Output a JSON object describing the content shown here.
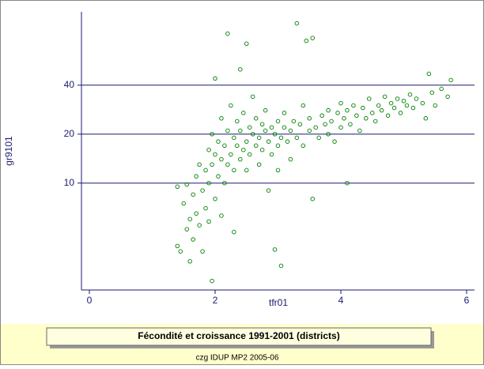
{
  "chart_data": {
    "type": "scatter",
    "title": "Fécondité et croissance 1991-2001 (districts)",
    "footer": "czg IDUP MP2 2005-06",
    "x_label": "tfr01",
    "y_label": "gr9101",
    "color": "#008000",
    "grid": true,
    "log_y": true,
    "xlim": [
      0,
      6
    ],
    "xticks": [
      0,
      2,
      4,
      6
    ],
    "ylim": [
      2.2,
      113
    ],
    "yticks": [
      10,
      20,
      40
    ],
    "x": [
      1.4,
      1.4,
      1.45,
      1.5,
      1.55,
      1.55,
      1.6,
      1.6,
      1.65,
      1.65,
      1.7,
      1.7,
      1.75,
      1.75,
      1.8,
      1.8,
      1.85,
      1.85,
      1.9,
      1.9,
      1.9,
      1.95,
      1.95,
      1.95,
      2.0,
      2.0,
      2.0,
      2.05,
      2.05,
      2.1,
      2.1,
      2.1,
      2.15,
      2.15,
      2.2,
      2.2,
      2.2,
      2.25,
      2.25,
      2.3,
      2.3,
      2.3,
      2.35,
      2.35,
      2.4,
      2.4,
      2.4,
      2.45,
      2.45,
      2.5,
      2.5,
      2.5,
      2.55,
      2.55,
      2.6,
      2.6,
      2.65,
      2.65,
      2.7,
      2.7,
      2.75,
      2.75,
      2.8,
      2.8,
      2.85,
      2.85,
      2.9,
      2.9,
      2.95,
      2.95,
      3.0,
      3.0,
      3.0,
      3.05,
      3.05,
      3.1,
      3.1,
      3.15,
      3.2,
      3.2,
      3.25,
      3.3,
      3.3,
      3.35,
      3.4,
      3.4,
      3.45,
      3.5,
      3.5,
      3.55,
      3.55,
      3.6,
      3.65,
      3.7,
      3.75,
      3.8,
      3.8,
      3.85,
      3.9,
      3.95,
      4.0,
      4.0,
      4.05,
      4.1,
      4.1,
      4.15,
      4.2,
      4.25,
      4.3,
      4.35,
      4.4,
      4.45,
      4.5,
      4.55,
      4.6,
      4.65,
      4.7,
      4.75,
      4.8,
      4.85,
      4.9,
      4.95,
      5.0,
      5.05,
      5.1,
      5.15,
      5.2,
      5.3,
      5.35,
      5.4,
      5.45,
      5.5,
      5.6,
      5.7,
      5.75
    ],
    "y": [
      9.5,
      4.1,
      3.8,
      7.5,
      5.2,
      9.8,
      6.0,
      3.3,
      8.5,
      4.5,
      11,
      6.5,
      5.5,
      13,
      9,
      3.8,
      7,
      12,
      10,
      16,
      5.8,
      2.5,
      13,
      20,
      8,
      15,
      44,
      11,
      18,
      14,
      25,
      6.3,
      17,
      10,
      21,
      13,
      83,
      15,
      30,
      12,
      19,
      5.0,
      17,
      24,
      14,
      21,
      50,
      16,
      27,
      18,
      72,
      12,
      22,
      15,
      20,
      34,
      17,
      25,
      19,
      13,
      23,
      16,
      21,
      28,
      18,
      9,
      22,
      15,
      20,
      3.9,
      24,
      17,
      12,
      19,
      3.1,
      22,
      27,
      18,
      21,
      14,
      24,
      19,
      96,
      23,
      17,
      30,
      75,
      21,
      25,
      78,
      8,
      22,
      19,
      26,
      23,
      20,
      28,
      24,
      18,
      27,
      22,
      31,
      25,
      10,
      28,
      23,
      30,
      26,
      21,
      29,
      25,
      33,
      27,
      24,
      30,
      28,
      34,
      26,
      31,
      29,
      33,
      27,
      32,
      30,
      35,
      29,
      33,
      31,
      25,
      47,
      36,
      30,
      38,
      34,
      43
    ]
  }
}
